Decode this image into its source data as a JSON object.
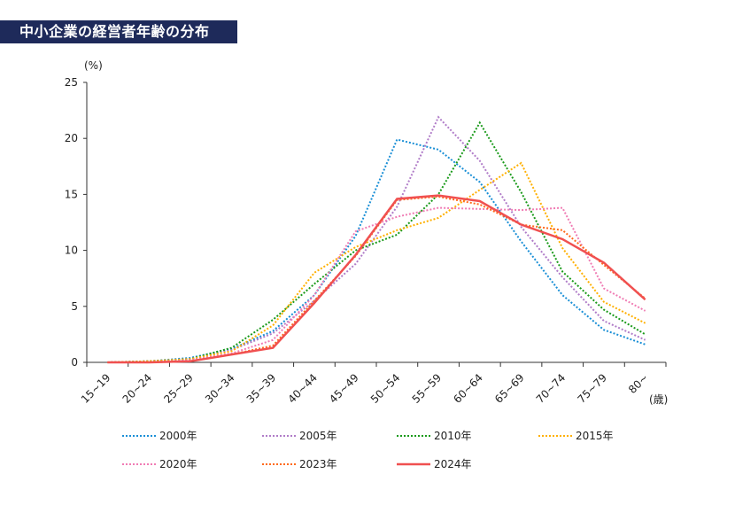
{
  "chart_data": {
    "type": "line",
    "title": "中小企業の経営者年齢の分布",
    "ylabel": "(%)",
    "xlabel": "(歳)",
    "ylim": [
      0,
      25
    ],
    "yticks": [
      0,
      5,
      10,
      15,
      20,
      25
    ],
    "grid": false,
    "legend_placement": "bottom",
    "categories": [
      "15~19",
      "20~24",
      "25~29",
      "30~34",
      "35~39",
      "40~44",
      "45~49",
      "50~54",
      "55~59",
      "60~64",
      "65~69",
      "70~74",
      "75~79",
      "80~"
    ],
    "series": [
      {
        "name": "2000年",
        "color": "#1a8fd6",
        "style": "dotted",
        "values": [
          0,
          0.1,
          0.4,
          1.2,
          2.8,
          6.0,
          11.3,
          19.9,
          19.0,
          16.1,
          10.8,
          6.0,
          2.9,
          1.6
        ]
      },
      {
        "name": "2005年",
        "color": "#b07cc8",
        "style": "dotted",
        "values": [
          0,
          0.1,
          0.3,
          1.1,
          2.6,
          5.5,
          8.8,
          13.9,
          21.9,
          18.0,
          12.1,
          7.6,
          3.7,
          2.0
        ]
      },
      {
        "name": "2010年",
        "color": "#1a9a1a",
        "style": "dotted",
        "values": [
          0,
          0.1,
          0.3,
          1.3,
          3.8,
          7.0,
          10.0,
          11.4,
          15.0,
          21.4,
          15.2,
          8.1,
          4.7,
          2.5
        ]
      },
      {
        "name": "2015年",
        "color": "#ffb000",
        "style": "dotted",
        "values": [
          0,
          0.1,
          0.3,
          1.0,
          3.3,
          8.0,
          10.3,
          11.8,
          12.9,
          15.4,
          17.8,
          10.2,
          5.4,
          3.5
        ]
      },
      {
        "name": "2020年",
        "color": "#f07cb4",
        "style": "dotted",
        "values": [
          0,
          0,
          0.2,
          0.8,
          2.0,
          6.0,
          11.7,
          13.0,
          13.8,
          13.7,
          13.6,
          13.8,
          6.6,
          4.6
        ]
      },
      {
        "name": "2023年",
        "color": "#ff6a1a",
        "style": "dotted",
        "values": [
          0,
          0,
          0.1,
          0.7,
          1.5,
          5.5,
          9.5,
          14.5,
          14.8,
          14.1,
          12.3,
          11.8,
          8.7,
          5.7
        ]
      },
      {
        "name": "2024年",
        "color": "#f05050",
        "style": "solid",
        "values": [
          0,
          0,
          0.1,
          0.7,
          1.3,
          5.3,
          9.6,
          14.6,
          14.9,
          14.4,
          12.3,
          11.0,
          8.9,
          5.6
        ]
      }
    ]
  }
}
